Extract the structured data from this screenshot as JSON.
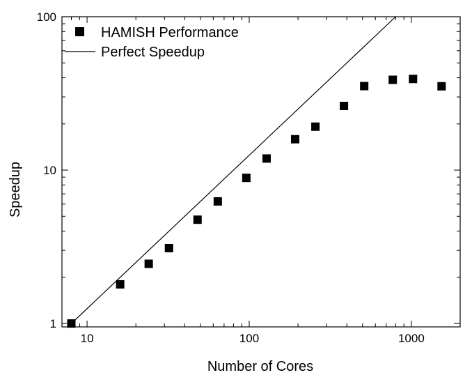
{
  "chart_data": {
    "type": "scatter",
    "xlabel": "Number of Cores",
    "ylabel": "Speedup",
    "xscale": "log",
    "yscale": "log",
    "xlim": [
      7,
      2000
    ],
    "ylim": [
      0.95,
      100
    ],
    "x_ticks": [
      10,
      100,
      1000
    ],
    "y_ticks": [
      1,
      10,
      100
    ],
    "grid": false,
    "legend_position": "top-left",
    "series": [
      {
        "name": "HAMISH Performance",
        "style": "square-markers",
        "color": "#000000",
        "x": [
          8,
          16,
          24,
          32,
          48,
          64,
          96,
          128,
          192,
          256,
          384,
          512,
          768,
          1024,
          1536
        ],
        "y": [
          1.0,
          1.8,
          2.45,
          3.1,
          4.75,
          6.25,
          8.9,
          11.9,
          15.9,
          19.2,
          26.2,
          35.3,
          38.8,
          39.3,
          35.2
        ]
      },
      {
        "name": "Perfect Speedup",
        "style": "line",
        "color": "#000000",
        "x": [
          8,
          800
        ],
        "y": [
          1,
          100
        ]
      }
    ]
  }
}
